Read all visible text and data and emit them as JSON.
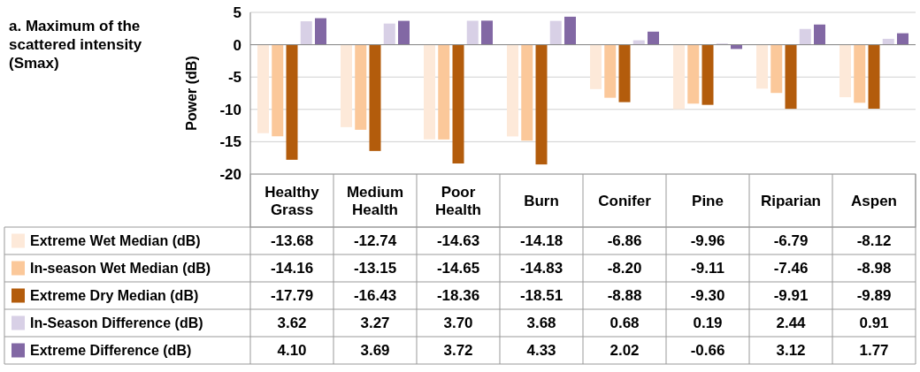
{
  "chart_data": {
    "type": "bar",
    "title": "a. Maximum of the scattered intensity (Smax)",
    "ylabel": "Power (dB)",
    "categories": [
      "Healthy Grass",
      "Medium Health",
      "Poor Health",
      "Burn",
      "Conifer",
      "Pine",
      "Riparian",
      "Aspen"
    ],
    "ylim": [
      -20,
      5
    ],
    "yticks": [
      -20,
      -15,
      -10,
      -5,
      0,
      5
    ],
    "grid": "y",
    "legend": "bottom",
    "data_labels": true,
    "series": [
      {
        "name": "Extreme Wet Median (dB)",
        "color": "#fde9d9",
        "values": [
          -13.68,
          -12.74,
          -14.63,
          -14.18,
          -6.86,
          -9.96,
          -6.79,
          -8.12
        ],
        "value_labels": [
          "-13.68",
          "-12.74",
          "-14.63",
          "-14.18",
          "-6.86",
          "-9.96",
          "-6.79",
          "-8.12"
        ]
      },
      {
        "name": "In-season Wet Median (dB)",
        "color": "#fbc89a",
        "values": [
          -14.16,
          -13.15,
          -14.65,
          -14.83,
          -8.2,
          -9.11,
          -7.46,
          -8.98
        ],
        "value_labels": [
          "-14.16",
          "-13.15",
          "-14.65",
          "-14.83",
          "-8.20",
          "-9.11",
          "-7.46",
          "-8.98"
        ]
      },
      {
        "name": "Extreme Dry Median (dB)",
        "color": "#b35c0c",
        "values": [
          -17.79,
          -16.43,
          -18.36,
          -18.51,
          -8.88,
          -9.3,
          -9.91,
          -9.89
        ],
        "value_labels": [
          "-17.79",
          "-16.43",
          "-18.36",
          "-18.51",
          "-8.88",
          "-9.30",
          "-9.91",
          "-9.89"
        ]
      },
      {
        "name": "In-Season Difference (dB)",
        "color": "#d8d0e6",
        "values": [
          3.62,
          3.27,
          3.7,
          3.68,
          0.68,
          0.19,
          2.44,
          0.91
        ],
        "value_labels": [
          "3.62",
          "3.27",
          "3.70",
          "3.68",
          "0.68",
          "0.19",
          "2.44",
          "0.91"
        ]
      },
      {
        "name": "Extreme Difference (dB)",
        "color": "#8268a4",
        "values": [
          4.1,
          3.69,
          3.72,
          4.33,
          2.02,
          -0.66,
          3.12,
          1.77
        ],
        "value_labels": [
          "4.10",
          "3.69",
          "3.72",
          "4.33",
          "2.02",
          "-0.66",
          "3.12",
          "1.77"
        ]
      }
    ]
  }
}
